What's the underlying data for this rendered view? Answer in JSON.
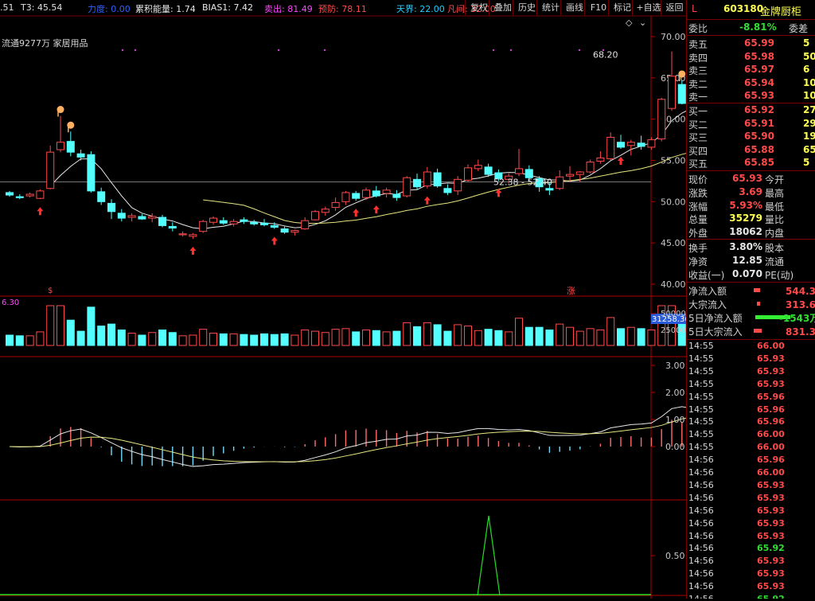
{
  "indicators": {
    "first_value": ".51",
    "t3": "T3: 45.54",
    "lidu": "力度: 0.00",
    "leiji": "累积能量: 1.74",
    "bias": "BIAS1: 7.42",
    "maichu": "卖出: 81.49",
    "yujing": "预防: 78.11",
    "tianjie": "天界: 22.00",
    "fanjian": "凡间: 32.00",
    "liutong": "流通9277万 家居用品"
  },
  "toolbar": [
    "复权",
    "叠加",
    "历史",
    "统计",
    "画线",
    "F10",
    "标记",
    "+自选",
    "返回"
  ],
  "chart_data": {
    "type": "candlestick",
    "ylim": [
      40,
      70
    ],
    "yticks": [
      "70.00",
      "65.00",
      "60.00",
      "55.00",
      "50.00",
      "45.00",
      "40.00"
    ],
    "candles": [
      [
        51.1,
        51.3,
        50.6,
        50.8
      ],
      [
        50.6,
        50.9,
        50.3,
        50.5
      ],
      [
        50.7,
        51.1,
        50.5,
        50.9
      ],
      [
        50.4,
        51.5,
        50.3,
        51.3
      ],
      [
        51.6,
        56.8,
        51.5,
        56.0
      ],
      [
        56.3,
        60.4,
        56.0,
        57.2
      ],
      [
        57.3,
        58.5,
        55.5,
        56.0
      ],
      [
        55.8,
        56.3,
        55.0,
        55.4
      ],
      [
        55.7,
        56.1,
        51.1,
        51.3
      ],
      [
        51.2,
        51.7,
        49.6,
        50.0
      ],
      [
        49.8,
        50.3,
        47.9,
        48.8
      ],
      [
        48.6,
        49.1,
        47.6,
        48.0
      ],
      [
        48.1,
        48.6,
        47.6,
        48.3
      ],
      [
        48.2,
        48.5,
        47.8,
        47.9
      ],
      [
        48.0,
        48.6,
        47.5,
        48.2
      ],
      [
        48.1,
        48.4,
        46.9,
        47.1
      ],
      [
        47.0,
        47.5,
        46.4,
        46.8
      ],
      [
        46.0,
        46.4,
        45.8,
        46.1
      ],
      [
        45.8,
        46.2,
        45.5,
        46.0
      ],
      [
        46.4,
        47.8,
        46.2,
        47.6
      ],
      [
        47.5,
        48.2,
        47.2,
        48.0
      ],
      [
        47.7,
        48.1,
        47.2,
        47.4
      ],
      [
        47.3,
        47.9,
        47.0,
        47.6
      ],
      [
        47.8,
        48.1,
        47.3,
        47.6
      ],
      [
        47.5,
        47.8,
        47.1,
        47.3
      ],
      [
        47.4,
        47.9,
        47.0,
        47.2
      ],
      [
        47.1,
        47.5,
        46.7,
        46.9
      ],
      [
        46.7,
        47.0,
        46.1,
        46.3
      ],
      [
        46.3,
        46.6,
        45.9,
        46.5
      ],
      [
        46.7,
        48.1,
        46.6,
        47.7
      ],
      [
        47.8,
        49.0,
        47.7,
        48.8
      ],
      [
        48.7,
        49.4,
        48.3,
        49.1
      ],
      [
        49.3,
        50.5,
        48.9,
        49.9
      ],
      [
        50.0,
        51.3,
        49.6,
        51.1
      ],
      [
        51.0,
        51.3,
        50.1,
        50.4
      ],
      [
        50.5,
        51.7,
        50.2,
        51.4
      ],
      [
        51.3,
        51.9,
        50.5,
        50.7
      ],
      [
        51.0,
        51.7,
        50.5,
        51.4
      ],
      [
        50.9,
        51.4,
        50.1,
        50.5
      ],
      [
        50.7,
        53.1,
        50.5,
        52.9
      ],
      [
        52.7,
        53.4,
        51.4,
        51.8
      ],
      [
        51.9,
        54.2,
        51.6,
        53.6
      ],
      [
        53.5,
        54.0,
        51.7,
        51.9
      ],
      [
        51.6,
        52.1,
        50.8,
        51.1
      ],
      [
        51.3,
        53.1,
        50.8,
        52.7
      ],
      [
        52.6,
        54.5,
        52.4,
        54.1
      ],
      [
        54.0,
        55.1,
        53.7,
        54.4
      ],
      [
        54.2,
        54.6,
        53.0,
        53.3
      ],
      [
        53.5,
        53.9,
        52.5,
        52.8
      ],
      [
        52.7,
        53.4,
        52.2,
        53.1
      ],
      [
        53.4,
        56.4,
        53.1,
        54.0
      ],
      [
        53.9,
        54.4,
        52.5,
        52.9
      ],
      [
        52.8,
        53.1,
        51.2,
        51.8
      ],
      [
        51.6,
        52.3,
        50.8,
        51.4
      ],
      [
        51.6,
        53.8,
        51.4,
        53.0
      ],
      [
        53.1,
        54.3,
        52.4,
        53.3
      ],
      [
        53.3,
        53.7,
        52.4,
        53.6
      ],
      [
        53.6,
        55.1,
        53.4,
        54.8
      ],
      [
        54.9,
        56.1,
        54.6,
        55.3
      ],
      [
        55.2,
        58.4,
        55.0,
        57.8
      ],
      [
        57.2,
        58.1,
        56.4,
        56.6
      ],
      [
        56.8,
        57.5,
        55.6,
        57.2
      ],
      [
        57.1,
        58.0,
        56.3,
        56.7
      ],
      [
        56.6,
        57.8,
        56.3,
        57.5
      ],
      [
        57.6,
        62.6,
        57.3,
        62.4
      ],
      [
        61.3,
        68.2,
        61.0,
        65.2
      ],
      [
        64.2,
        64.7,
        61.8,
        61.9
      ],
      [
        61.9,
        63.9,
        59.3,
        59.6
      ],
      [
        59.9,
        63.1,
        59.5,
        62.8
      ],
      [
        61.7,
        66.4,
        61.5,
        65.9
      ]
    ],
    "annotation_range": "52.38 - 52.40",
    "annotation_high": "68.20",
    "volume": {
      "max": 55000,
      "value_label": "31258.36",
      "ticks": [
        "50000",
        "25000"
      ],
      "label": "6.30"
    },
    "macd": {
      "ticks": [
        "3.00",
        "2.00",
        "1.00",
        "0.00"
      ]
    },
    "bottom": {
      "ticks": [
        "0.50"
      ]
    },
    "markers": {
      "up_arrows": [
        3,
        18,
        26,
        34,
        36,
        41,
        48,
        60
      ],
      "tops": [
        5,
        6,
        66,
        69
      ]
    },
    "labels": {
      "xia": "$",
      "zhang": "涨"
    }
  },
  "side": {
    "flag": "L",
    "code": "603180",
    "name": "金牌厨柜",
    "weibi_label": "委比",
    "weibi_value": "-8.81%",
    "weicha_label": "委差",
    "asks": [
      {
        "label": "卖五",
        "price": "65.99",
        "vol": "5"
      },
      {
        "label": "卖四",
        "price": "65.98",
        "vol": "50"
      },
      {
        "label": "卖三",
        "price": "65.97",
        "vol": "6"
      },
      {
        "label": "卖二",
        "price": "65.94",
        "vol": "10"
      },
      {
        "label": "卖一",
        "price": "65.93",
        "vol": "102"
      }
    ],
    "bids": [
      {
        "label": "买一",
        "price": "65.92",
        "vol": "27"
      },
      {
        "label": "买二",
        "price": "65.91",
        "vol": "29"
      },
      {
        "label": "买三",
        "price": "65.90",
        "vol": "19"
      },
      {
        "label": "买四",
        "price": "65.88",
        "vol": "65"
      },
      {
        "label": "买五",
        "price": "65.85",
        "vol": "5"
      }
    ],
    "quote": [
      {
        "l1": "现价",
        "v1": "65.93",
        "l2": "今开",
        "c": "red"
      },
      {
        "l1": "涨跌",
        "v1": "3.69",
        "l2": "最高",
        "c": "red"
      },
      {
        "l1": "涨幅",
        "v1": "5.93%",
        "l2": "最低",
        "c": "red"
      },
      {
        "l1": "总量",
        "v1": "35279",
        "l2": "量比",
        "c": "yel"
      },
      {
        "l1": "外盘",
        "v1": "18062",
        "l2": "内盘",
        "c": "wht"
      }
    ],
    "stats": [
      {
        "l1": "换手",
        "v1": "3.80%",
        "l2": "股本"
      },
      {
        "l1": "净资",
        "v1": "12.85",
        "l2": "流通"
      },
      {
        "l1": "收益(一)",
        "v1": "0.070",
        "l2": "PE(动)"
      }
    ],
    "flows": [
      {
        "label": "净流入额",
        "value": "544.3万",
        "c": "red"
      },
      {
        "label": "大宗流入",
        "value": "313.6万",
        "c": "red"
      },
      {
        "label": "5日净流入额",
        "value": "-1543万",
        "c": "grn"
      },
      {
        "label": "5日大宗流入",
        "value": "831.3万",
        "c": "red"
      }
    ],
    "ticks": [
      {
        "t": "14:55",
        "p": "66.00"
      },
      {
        "t": "14:55",
        "p": "65.93"
      },
      {
        "t": "14:55",
        "p": "65.93"
      },
      {
        "t": "14:55",
        "p": "65.93"
      },
      {
        "t": "14:55",
        "p": "65.96"
      },
      {
        "t": "14:55",
        "p": "65.96"
      },
      {
        "t": "14:55",
        "p": "65.96"
      },
      {
        "t": "14:55",
        "p": "66.00"
      },
      {
        "t": "14:55",
        "p": "66.00"
      },
      {
        "t": "14:56",
        "p": "65.96"
      },
      {
        "t": "14:56",
        "p": "66.00"
      },
      {
        "t": "14:56",
        "p": "65.93"
      },
      {
        "t": "14:56",
        "p": "65.93"
      },
      {
        "t": "14:56",
        "p": "65.93"
      },
      {
        "t": "14:56",
        "p": "65.93"
      },
      {
        "t": "14:56",
        "p": "65.93"
      },
      {
        "t": "14:56",
        "p": "65.92"
      },
      {
        "t": "14:56",
        "p": "65.93"
      },
      {
        "t": "14:56",
        "p": "65.93"
      },
      {
        "t": "14:56",
        "p": "65.93"
      },
      {
        "t": "14:56",
        "p": "65.92"
      }
    ]
  }
}
